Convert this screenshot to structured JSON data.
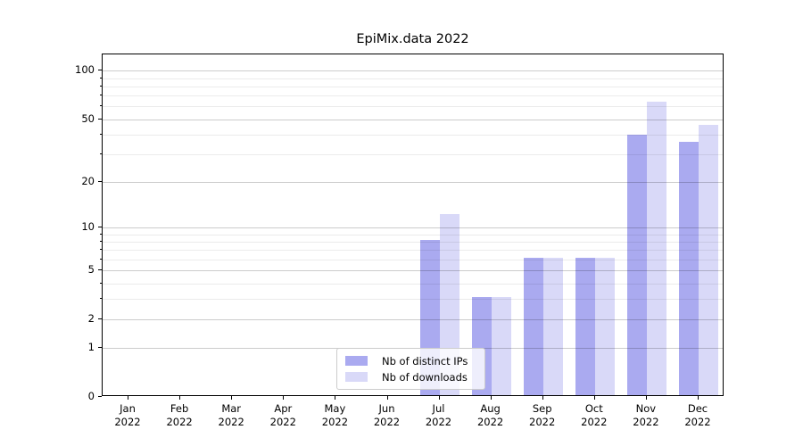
{
  "title": "EpiMix.data 2022",
  "chart_data": {
    "type": "bar",
    "title": "EpiMix.data 2022",
    "categories": [
      "Jan",
      "Feb",
      "Mar",
      "Apr",
      "May",
      "Jun",
      "Jul",
      "Aug",
      "Sep",
      "Oct",
      "Nov",
      "Dec"
    ],
    "category_year": "2022",
    "series": [
      {
        "name": "Nb of distinct IPs",
        "color": "#aaaaf0",
        "values": [
          0,
          0,
          0,
          0,
          0,
          0,
          8,
          3,
          6,
          6,
          39,
          35
        ]
      },
      {
        "name": "Nb of downloads",
        "color": "#d9d9f8",
        "values": [
          0,
          0,
          0,
          0,
          0,
          0,
          12,
          3,
          6,
          6,
          63,
          45
        ]
      }
    ],
    "xlabel": "",
    "ylabel": "",
    "yscale": "log1p",
    "ylim": [
      0,
      126.4
    ],
    "y_major_ticks": [
      0,
      1,
      2,
      5,
      10,
      20,
      50,
      100
    ],
    "y_minor_ticks": [
      3,
      4,
      6,
      7,
      8,
      9,
      30,
      40,
      60,
      70,
      80,
      90
    ],
    "grid": "on",
    "legend_position": "lower center inside"
  },
  "legend": {
    "items": [
      {
        "label": "Nb of distinct IPs",
        "color": "#aaaaf0"
      },
      {
        "label": "Nb of downloads",
        "color": "#d9d9f8"
      }
    ]
  }
}
